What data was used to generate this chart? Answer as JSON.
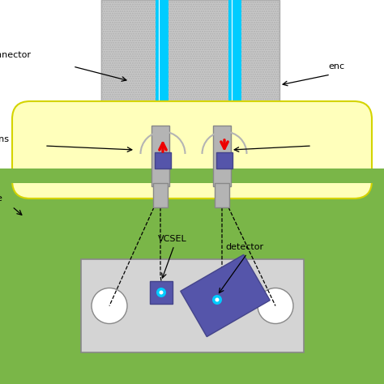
{
  "bg_color": "#ffffff",
  "green_color": "#7ab648",
  "yellow_color": "#ffffbb",
  "yellow_stroke": "#d4d400",
  "gray_enc_color": "#c8c8c8",
  "gray_enc_stroke": "#aaaaaa",
  "blue_purple": "#5555aa",
  "blue_purple_dark": "#44448a",
  "light_blue": "#00ccff",
  "light_blue2": "#88eeff",
  "red_arrow": "#ee0000",
  "pcb_gray": "#d4d4d4",
  "pcb_stroke": "#888888",
  "connector_gray": "#b4b4b4",
  "connector_stroke": "#888888",
  "label_connector": "nnector",
  "label_enc": "enc",
  "label_ins": "ins",
  "label_e": "e",
  "label_vcsel": "VCSEL",
  "label_detector": "detector",
  "fontsize": 8
}
